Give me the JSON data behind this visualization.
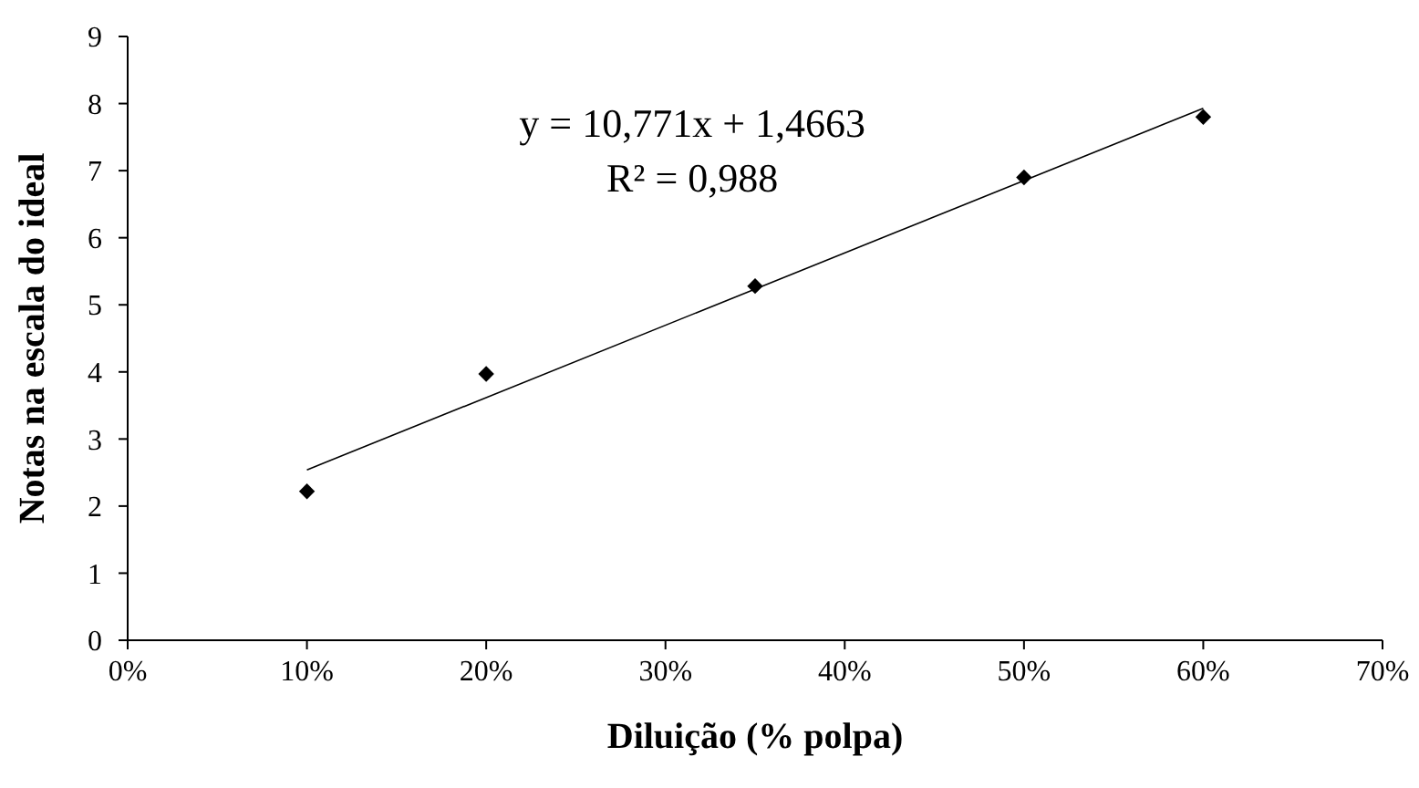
{
  "chart_data": {
    "type": "scatter",
    "xlabel": "Diluição (% polpa)",
    "ylabel": "Notas na escala do ideal",
    "x": [
      0.1,
      0.2,
      0.35,
      0.5,
      0.6
    ],
    "series": [
      {
        "color": "#000000",
        "marker": "diamond",
        "values": [
          2.22,
          3.97,
          5.28,
          6.9,
          7.8
        ]
      },
      {
        "type": "line",
        "color": "#000000",
        "marker": "none",
        "x": [
          0.1,
          0.6
        ],
        "values": [
          2.54,
          7.93
        ]
      }
    ],
    "xlim": [
      0,
      0.7
    ],
    "xticks": [
      {
        "value": 0,
        "label": "0%"
      },
      {
        "value": 0.1,
        "label": "10%"
      },
      {
        "value": 0.2,
        "label": "20%"
      },
      {
        "value": 0.3,
        "label": "30%"
      },
      {
        "value": 0.4,
        "label": "40%"
      },
      {
        "value": 0.5,
        "label": "50%"
      },
      {
        "value": 0.6,
        "label": "60%"
      },
      {
        "value": 0.7,
        "label": "70%"
      }
    ],
    "ylim": [
      0,
      9
    ],
    "yticks": [
      0,
      1,
      2,
      3,
      4,
      5,
      6,
      7,
      8,
      9
    ],
    "grid": false,
    "annotations": [
      "y = 10,771x + 1,4663",
      "R² = 0,988"
    ]
  }
}
